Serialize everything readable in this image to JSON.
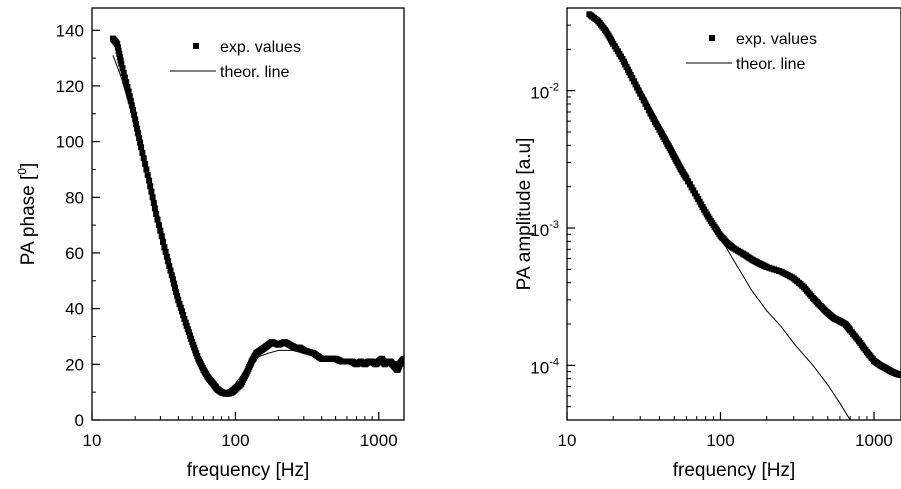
{
  "chart_data": [
    {
      "type": "scatter",
      "xscale": "log",
      "yscale": "linear",
      "xlim": [
        10,
        1500
      ],
      "ylim": [
        0,
        148
      ],
      "xlabel": "frequency [Hz]",
      "ylabel": "PA phase [°]",
      "ylabel_parts": {
        "before": "PA phase [",
        "sup": "0",
        "after": "]"
      },
      "legend": {
        "position": "top-right",
        "entries": [
          "exp. values",
          "theor. line"
        ]
      },
      "xticks": [
        10,
        100,
        1000
      ],
      "xtick_labels": [
        "10",
        "100",
        "1000"
      ],
      "yticks": [
        0,
        20,
        40,
        60,
        80,
        100,
        120,
        140
      ],
      "ytick_labels": [
        "0",
        "20",
        "40",
        "60",
        "80",
        "100",
        "120",
        "140"
      ],
      "series": [
        {
          "name": "exp. values",
          "kind": "markers",
          "points": [
            [
              14,
              137
            ],
            [
              15,
              135
            ],
            [
              16,
              128
            ],
            [
              18,
              118
            ],
            [
              20,
              108
            ],
            [
              22,
              98
            ],
            [
              25,
              86
            ],
            [
              28,
              74
            ],
            [
              32,
              62
            ],
            [
              36,
              52
            ],
            [
              40,
              43
            ],
            [
              45,
              35
            ],
            [
              50,
              28
            ],
            [
              55,
              22
            ],
            [
              60,
              18
            ],
            [
              65,
              15
            ],
            [
              70,
              13
            ],
            [
              75,
              11
            ],
            [
              80,
              10
            ],
            [
              85,
              9.5
            ],
            [
              90,
              9.5
            ],
            [
              95,
              10
            ],
            [
              100,
              11
            ],
            [
              110,
              13
            ],
            [
              120,
              17
            ],
            [
              130,
              21
            ],
            [
              140,
              24
            ],
            [
              150,
              25
            ],
            [
              160,
              26
            ],
            [
              170,
              27
            ],
            [
              180,
              28
            ],
            [
              200,
              27
            ],
            [
              220,
              28
            ],
            [
              240,
              27
            ],
            [
              260,
              26
            ],
            [
              280,
              26
            ],
            [
              300,
              25
            ],
            [
              350,
              24
            ],
            [
              400,
              22
            ],
            [
              450,
              22
            ],
            [
              500,
              22
            ],
            [
              550,
              21
            ],
            [
              600,
              21
            ],
            [
              650,
              21
            ],
            [
              700,
              20
            ],
            [
              750,
              21
            ],
            [
              800,
              20
            ],
            [
              850,
              21
            ],
            [
              900,
              21
            ],
            [
              950,
              20
            ],
            [
              1000,
              21
            ],
            [
              1050,
              22
            ],
            [
              1100,
              20
            ],
            [
              1150,
              21
            ],
            [
              1200,
              21
            ],
            [
              1250,
              20
            ],
            [
              1300,
              19
            ],
            [
              1350,
              18
            ],
            [
              1400,
              20
            ],
            [
              1450,
              21
            ],
            [
              1500,
              22
            ]
          ]
        },
        {
          "name": "theor. line",
          "kind": "line",
          "points": [
            [
              14,
              131
            ],
            [
              16,
              123
            ],
            [
              18,
              114
            ],
            [
              20,
              105
            ],
            [
              23,
              94
            ],
            [
              26,
              84
            ],
            [
              30,
              71
            ],
            [
              35,
              57
            ],
            [
              40,
              46
            ],
            [
              45,
              37
            ],
            [
              50,
              30
            ],
            [
              55,
              24
            ],
            [
              60,
              19
            ],
            [
              65,
              16
            ],
            [
              70,
              13
            ],
            [
              75,
              12
            ],
            [
              80,
              11
            ],
            [
              85,
              10.5
            ],
            [
              90,
              11
            ],
            [
              95,
              12
            ],
            [
              100,
              13
            ],
            [
              110,
              16
            ],
            [
              120,
              19
            ],
            [
              130,
              21
            ],
            [
              150,
              23
            ],
            [
              170,
              24
            ],
            [
              200,
              25
            ],
            [
              250,
              25
            ],
            [
              300,
              24
            ],
            [
              400,
              23
            ],
            [
              500,
              22
            ],
            [
              700,
              21
            ],
            [
              1000,
              21
            ],
            [
              1500,
              21
            ]
          ]
        }
      ]
    },
    {
      "type": "scatter",
      "xscale": "log",
      "yscale": "log",
      "xlim": [
        10,
        1500
      ],
      "ylim": [
        4e-05,
        0.04
      ],
      "xlabel": "frequency [Hz]",
      "ylabel": "PA amplitude [a.u]",
      "legend": {
        "position": "top-right",
        "entries": [
          "exp. values",
          "theor. line"
        ]
      },
      "xticks": [
        10,
        100,
        1000
      ],
      "xtick_labels": [
        "10",
        "100",
        "1000"
      ],
      "yticks": [
        0.0001,
        0.001,
        0.01
      ],
      "ytick_labels": [
        {
          "base": "10",
          "exp": "-4"
        },
        {
          "base": "10",
          "exp": "-3"
        },
        {
          "base": "10",
          "exp": "-2"
        }
      ],
      "series": [
        {
          "name": "exp. values",
          "kind": "markers",
          "points": [
            [
              14,
              0.036
            ],
            [
              16,
              0.032
            ],
            [
              18,
              0.027
            ],
            [
              20,
              0.022
            ],
            [
              23,
              0.017
            ],
            [
              26,
              0.013
            ],
            [
              30,
              0.0095
            ],
            [
              35,
              0.0068
            ],
            [
              40,
              0.0052
            ],
            [
              45,
              0.0041
            ],
            [
              50,
              0.0033
            ],
            [
              55,
              0.0027
            ],
            [
              60,
              0.0023
            ],
            [
              70,
              0.0017
            ],
            [
              80,
              0.0013
            ],
            [
              90,
              0.00105
            ],
            [
              100,
              0.00088
            ],
            [
              110,
              0.00078
            ],
            [
              120,
              0.00072
            ],
            [
              140,
              0.00065
            ],
            [
              160,
              0.00059
            ],
            [
              180,
              0.00055
            ],
            [
              200,
              0.00052
            ],
            [
              250,
              0.00048
            ],
            [
              300,
              0.00043
            ],
            [
              350,
              0.00037
            ],
            [
              400,
              0.00031
            ],
            [
              450,
              0.00027
            ],
            [
              500,
              0.00024
            ],
            [
              550,
              0.00022
            ],
            [
              600,
              0.00021
            ],
            [
              650,
              0.0002
            ],
            [
              700,
              0.00018
            ],
            [
              800,
              0.00015
            ],
            [
              900,
              0.000125
            ],
            [
              1000,
              0.000108
            ],
            [
              1100,
              0.0001
            ],
            [
              1200,
              9.5e-05
            ],
            [
              1300,
              9e-05
            ],
            [
              1400,
              8.7e-05
            ],
            [
              1500,
              8.5e-05
            ]
          ]
        },
        {
          "name": "theor. line",
          "kind": "line",
          "points": [
            [
              14,
              0.036
            ],
            [
              20,
              0.023
            ],
            [
              30,
              0.0105
            ],
            [
              40,
              0.0058
            ],
            [
              50,
              0.0037
            ],
            [
              60,
              0.0025
            ],
            [
              70,
              0.0018
            ],
            [
              80,
              0.0013
            ],
            [
              100,
              0.00085
            ],
            [
              120,
              0.0006
            ],
            [
              140,
              0.00045
            ],
            [
              160,
              0.00035
            ],
            [
              200,
              0.00025
            ],
            [
              250,
              0.00019
            ],
            [
              300,
              0.000145
            ],
            [
              400,
              0.0001
            ],
            [
              500,
              7.2e-05
            ],
            [
              600,
              5.3e-05
            ],
            [
              700,
              4e-05
            ]
          ]
        }
      ]
    }
  ]
}
